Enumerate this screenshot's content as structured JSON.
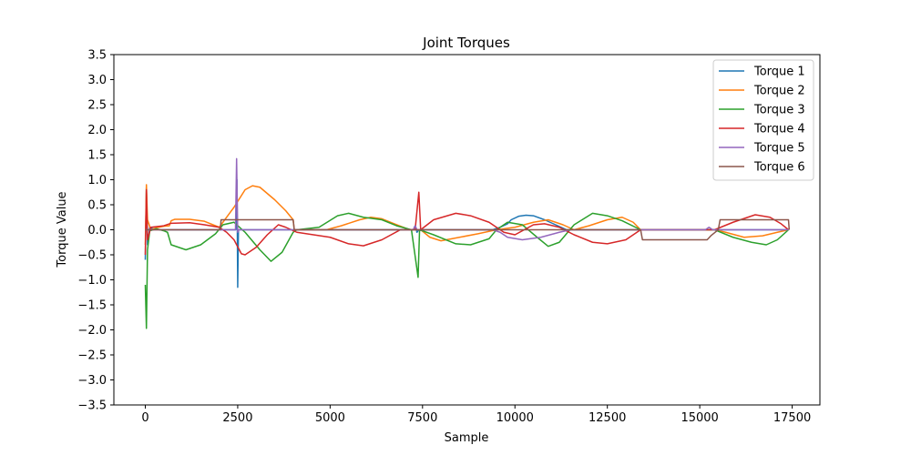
{
  "chart_data": {
    "type": "line",
    "title": "Joint Torques",
    "xlabel": "Sample",
    "ylabel": "Torque Value",
    "xlim": [
      -850,
      18250
    ],
    "ylim": [
      -3.5,
      3.5
    ],
    "xticks": [
      0,
      2500,
      5000,
      7500,
      10000,
      12500,
      15000,
      17500
    ],
    "yticks": [
      -3.5,
      -3.0,
      -2.5,
      -2.0,
      -1.5,
      -1.0,
      -0.5,
      0.0,
      0.5,
      1.0,
      1.5,
      2.0,
      2.5,
      3.0,
      3.5
    ],
    "xtick_labels": [
      "0",
      "2500",
      "5000",
      "7500",
      "10000",
      "12500",
      "15000",
      "17500"
    ],
    "ytick_labels": [
      "−3.5",
      "−3.0",
      "−2.5",
      "−2.0",
      "−1.5",
      "−1.0",
      "−0.5",
      "0.0",
      "0.5",
      "1.0",
      "1.5",
      "2.0",
      "2.5",
      "3.0",
      "3.5"
    ],
    "legend_position": "top-right",
    "grid": false,
    "series": [
      {
        "name": "Torque 1",
        "color": "#1f77b4",
        "points": [
          [
            0,
            -0.6
          ],
          [
            30,
            0.85
          ],
          [
            60,
            -0.3
          ],
          [
            120,
            0.05
          ],
          [
            200,
            0.02
          ],
          [
            400,
            0.0
          ],
          [
            2000,
            0.0
          ],
          [
            2450,
            0.0
          ],
          [
            2480,
            1.0
          ],
          [
            2500,
            -1.15
          ],
          [
            2520,
            0.0
          ],
          [
            4000,
            0.0
          ],
          [
            7250,
            0.0
          ],
          [
            7300,
            0.08
          ],
          [
            7350,
            -0.05
          ],
          [
            7400,
            0.0
          ],
          [
            9400,
            0.0
          ],
          [
            9600,
            0.05
          ],
          [
            9800,
            0.12
          ],
          [
            9900,
            0.2
          ],
          [
            10100,
            0.27
          ],
          [
            10300,
            0.29
          ],
          [
            10500,
            0.28
          ],
          [
            10800,
            0.2
          ],
          [
            11100,
            0.1
          ],
          [
            11400,
            0.0
          ],
          [
            17400,
            0.0
          ]
        ]
      },
      {
        "name": "Torque 2",
        "color": "#ff7f0e",
        "points": [
          [
            0,
            -0.3
          ],
          [
            30,
            0.9
          ],
          [
            60,
            0.2
          ],
          [
            150,
            0.0
          ],
          [
            300,
            0.04
          ],
          [
            500,
            0.07
          ],
          [
            650,
            0.08
          ],
          [
            700,
            0.18
          ],
          [
            800,
            0.21
          ],
          [
            1200,
            0.21
          ],
          [
            1600,
            0.17
          ],
          [
            2000,
            0.05
          ],
          [
            2400,
            0.45
          ],
          [
            2700,
            0.8
          ],
          [
            2900,
            0.88
          ],
          [
            3100,
            0.85
          ],
          [
            3500,
            0.6
          ],
          [
            3800,
            0.38
          ],
          [
            4000,
            0.2
          ],
          [
            4030,
            0.0
          ],
          [
            4600,
            0.0
          ],
          [
            4900,
            0.0
          ],
          [
            5300,
            0.08
          ],
          [
            5800,
            0.2
          ],
          [
            6100,
            0.25
          ],
          [
            6400,
            0.22
          ],
          [
            6800,
            0.1
          ],
          [
            7150,
            0.0
          ],
          [
            7450,
            0.0
          ],
          [
            7700,
            -0.15
          ],
          [
            8000,
            -0.22
          ],
          [
            8500,
            -0.15
          ],
          [
            9000,
            -0.08
          ],
          [
            9500,
            0.0
          ],
          [
            10000,
            0.05
          ],
          [
            10500,
            0.15
          ],
          [
            10900,
            0.2
          ],
          [
            11300,
            0.1
          ],
          [
            11600,
            0.0
          ],
          [
            12000,
            0.08
          ],
          [
            12500,
            0.2
          ],
          [
            12900,
            0.25
          ],
          [
            13200,
            0.15
          ],
          [
            13400,
            0.0
          ],
          [
            15400,
            0.0
          ],
          [
            15700,
            -0.05
          ],
          [
            16200,
            -0.15
          ],
          [
            16700,
            -0.12
          ],
          [
            17100,
            -0.05
          ],
          [
            17400,
            0.0
          ]
        ]
      },
      {
        "name": "Torque 3",
        "color": "#2ca02c",
        "points": [
          [
            0,
            -1.1
          ],
          [
            30,
            -1.97
          ],
          [
            60,
            -0.4
          ],
          [
            120,
            -0.02
          ],
          [
            300,
            0.02
          ],
          [
            500,
            -0.02
          ],
          [
            600,
            -0.05
          ],
          [
            700,
            -0.3
          ],
          [
            1100,
            -0.4
          ],
          [
            1500,
            -0.3
          ],
          [
            1900,
            -0.08
          ],
          [
            2100,
            0.1
          ],
          [
            2400,
            0.15
          ],
          [
            2700,
            -0.05
          ],
          [
            3100,
            -0.4
          ],
          [
            3400,
            -0.63
          ],
          [
            3700,
            -0.45
          ],
          [
            4000,
            -0.05
          ],
          [
            4100,
            0.0
          ],
          [
            4700,
            0.05
          ],
          [
            5200,
            0.28
          ],
          [
            5500,
            0.33
          ],
          [
            5900,
            0.25
          ],
          [
            6400,
            0.2
          ],
          [
            6800,
            0.08
          ],
          [
            7200,
            0.0
          ],
          [
            7380,
            -0.95
          ],
          [
            7420,
            0.0
          ],
          [
            7800,
            -0.1
          ],
          [
            8400,
            -0.28
          ],
          [
            8800,
            -0.3
          ],
          [
            9300,
            -0.18
          ],
          [
            9500,
            0.0
          ],
          [
            9800,
            0.15
          ],
          [
            10200,
            0.1
          ],
          [
            10600,
            -0.15
          ],
          [
            10900,
            -0.33
          ],
          [
            11200,
            -0.25
          ],
          [
            11600,
            0.1
          ],
          [
            12100,
            0.33
          ],
          [
            12500,
            0.28
          ],
          [
            12900,
            0.18
          ],
          [
            13400,
            0.0
          ],
          [
            15400,
            0.0
          ],
          [
            15900,
            -0.15
          ],
          [
            16400,
            -0.25
          ],
          [
            16800,
            -0.3
          ],
          [
            17100,
            -0.2
          ],
          [
            17400,
            0.0
          ]
        ]
      },
      {
        "name": "Torque 4",
        "color": "#d62728",
        "points": [
          [
            0,
            -0.5
          ],
          [
            30,
            0.8
          ],
          [
            60,
            -0.2
          ],
          [
            150,
            0.05
          ],
          [
            500,
            0.08
          ],
          [
            700,
            0.13
          ],
          [
            1200,
            0.14
          ],
          [
            1600,
            0.1
          ],
          [
            2000,
            0.05
          ],
          [
            2200,
            -0.05
          ],
          [
            2400,
            -0.2
          ],
          [
            2600,
            -0.48
          ],
          [
            2700,
            -0.5
          ],
          [
            3000,
            -0.35
          ],
          [
            3300,
            -0.1
          ],
          [
            3600,
            0.1
          ],
          [
            3800,
            0.05
          ],
          [
            4100,
            -0.05
          ],
          [
            5000,
            -0.15
          ],
          [
            5500,
            -0.28
          ],
          [
            5900,
            -0.32
          ],
          [
            6400,
            -0.2
          ],
          [
            6900,
            0.0
          ],
          [
            7300,
            0.0
          ],
          [
            7400,
            0.75
          ],
          [
            7450,
            0.0
          ],
          [
            7800,
            0.2
          ],
          [
            8400,
            0.33
          ],
          [
            8800,
            0.28
          ],
          [
            9300,
            0.15
          ],
          [
            9700,
            -0.05
          ],
          [
            10000,
            -0.1
          ],
          [
            10500,
            0.1
          ],
          [
            10800,
            0.12
          ],
          [
            11200,
            0.05
          ],
          [
            11600,
            -0.1
          ],
          [
            12100,
            -0.25
          ],
          [
            12500,
            -0.28
          ],
          [
            13000,
            -0.2
          ],
          [
            13400,
            0.0
          ],
          [
            15400,
            0.0
          ],
          [
            15900,
            0.15
          ],
          [
            16500,
            0.3
          ],
          [
            16900,
            0.25
          ],
          [
            17200,
            0.12
          ],
          [
            17400,
            0.0
          ]
        ]
      },
      {
        "name": "Torque 5",
        "color": "#9467bd",
        "points": [
          [
            0,
            0.0
          ],
          [
            2440,
            0.0
          ],
          [
            2470,
            1.42
          ],
          [
            2500,
            -0.05
          ],
          [
            2530,
            0.0
          ],
          [
            7250,
            0.0
          ],
          [
            7300,
            0.08
          ],
          [
            7350,
            0.0
          ],
          [
            9400,
            0.0
          ],
          [
            9600,
            -0.05
          ],
          [
            9800,
            -0.15
          ],
          [
            10200,
            -0.2
          ],
          [
            10700,
            -0.15
          ],
          [
            11200,
            -0.05
          ],
          [
            11500,
            0.0
          ],
          [
            15150,
            0.0
          ],
          [
            15250,
            0.05
          ],
          [
            15350,
            0.0
          ],
          [
            17400,
            0.0
          ]
        ]
      },
      {
        "name": "Torque 6",
        "color": "#8c564b",
        "points": [
          [
            0,
            0.0
          ],
          [
            2030,
            0.0
          ],
          [
            2050,
            0.2
          ],
          [
            4000,
            0.2
          ],
          [
            4030,
            0.0
          ],
          [
            13400,
            0.0
          ],
          [
            13450,
            -0.2
          ],
          [
            15200,
            -0.2
          ],
          [
            15300,
            -0.12
          ],
          [
            15500,
            0.0
          ],
          [
            15550,
            0.2
          ],
          [
            17400,
            0.2
          ],
          [
            17420,
            0.0
          ]
        ]
      }
    ]
  }
}
